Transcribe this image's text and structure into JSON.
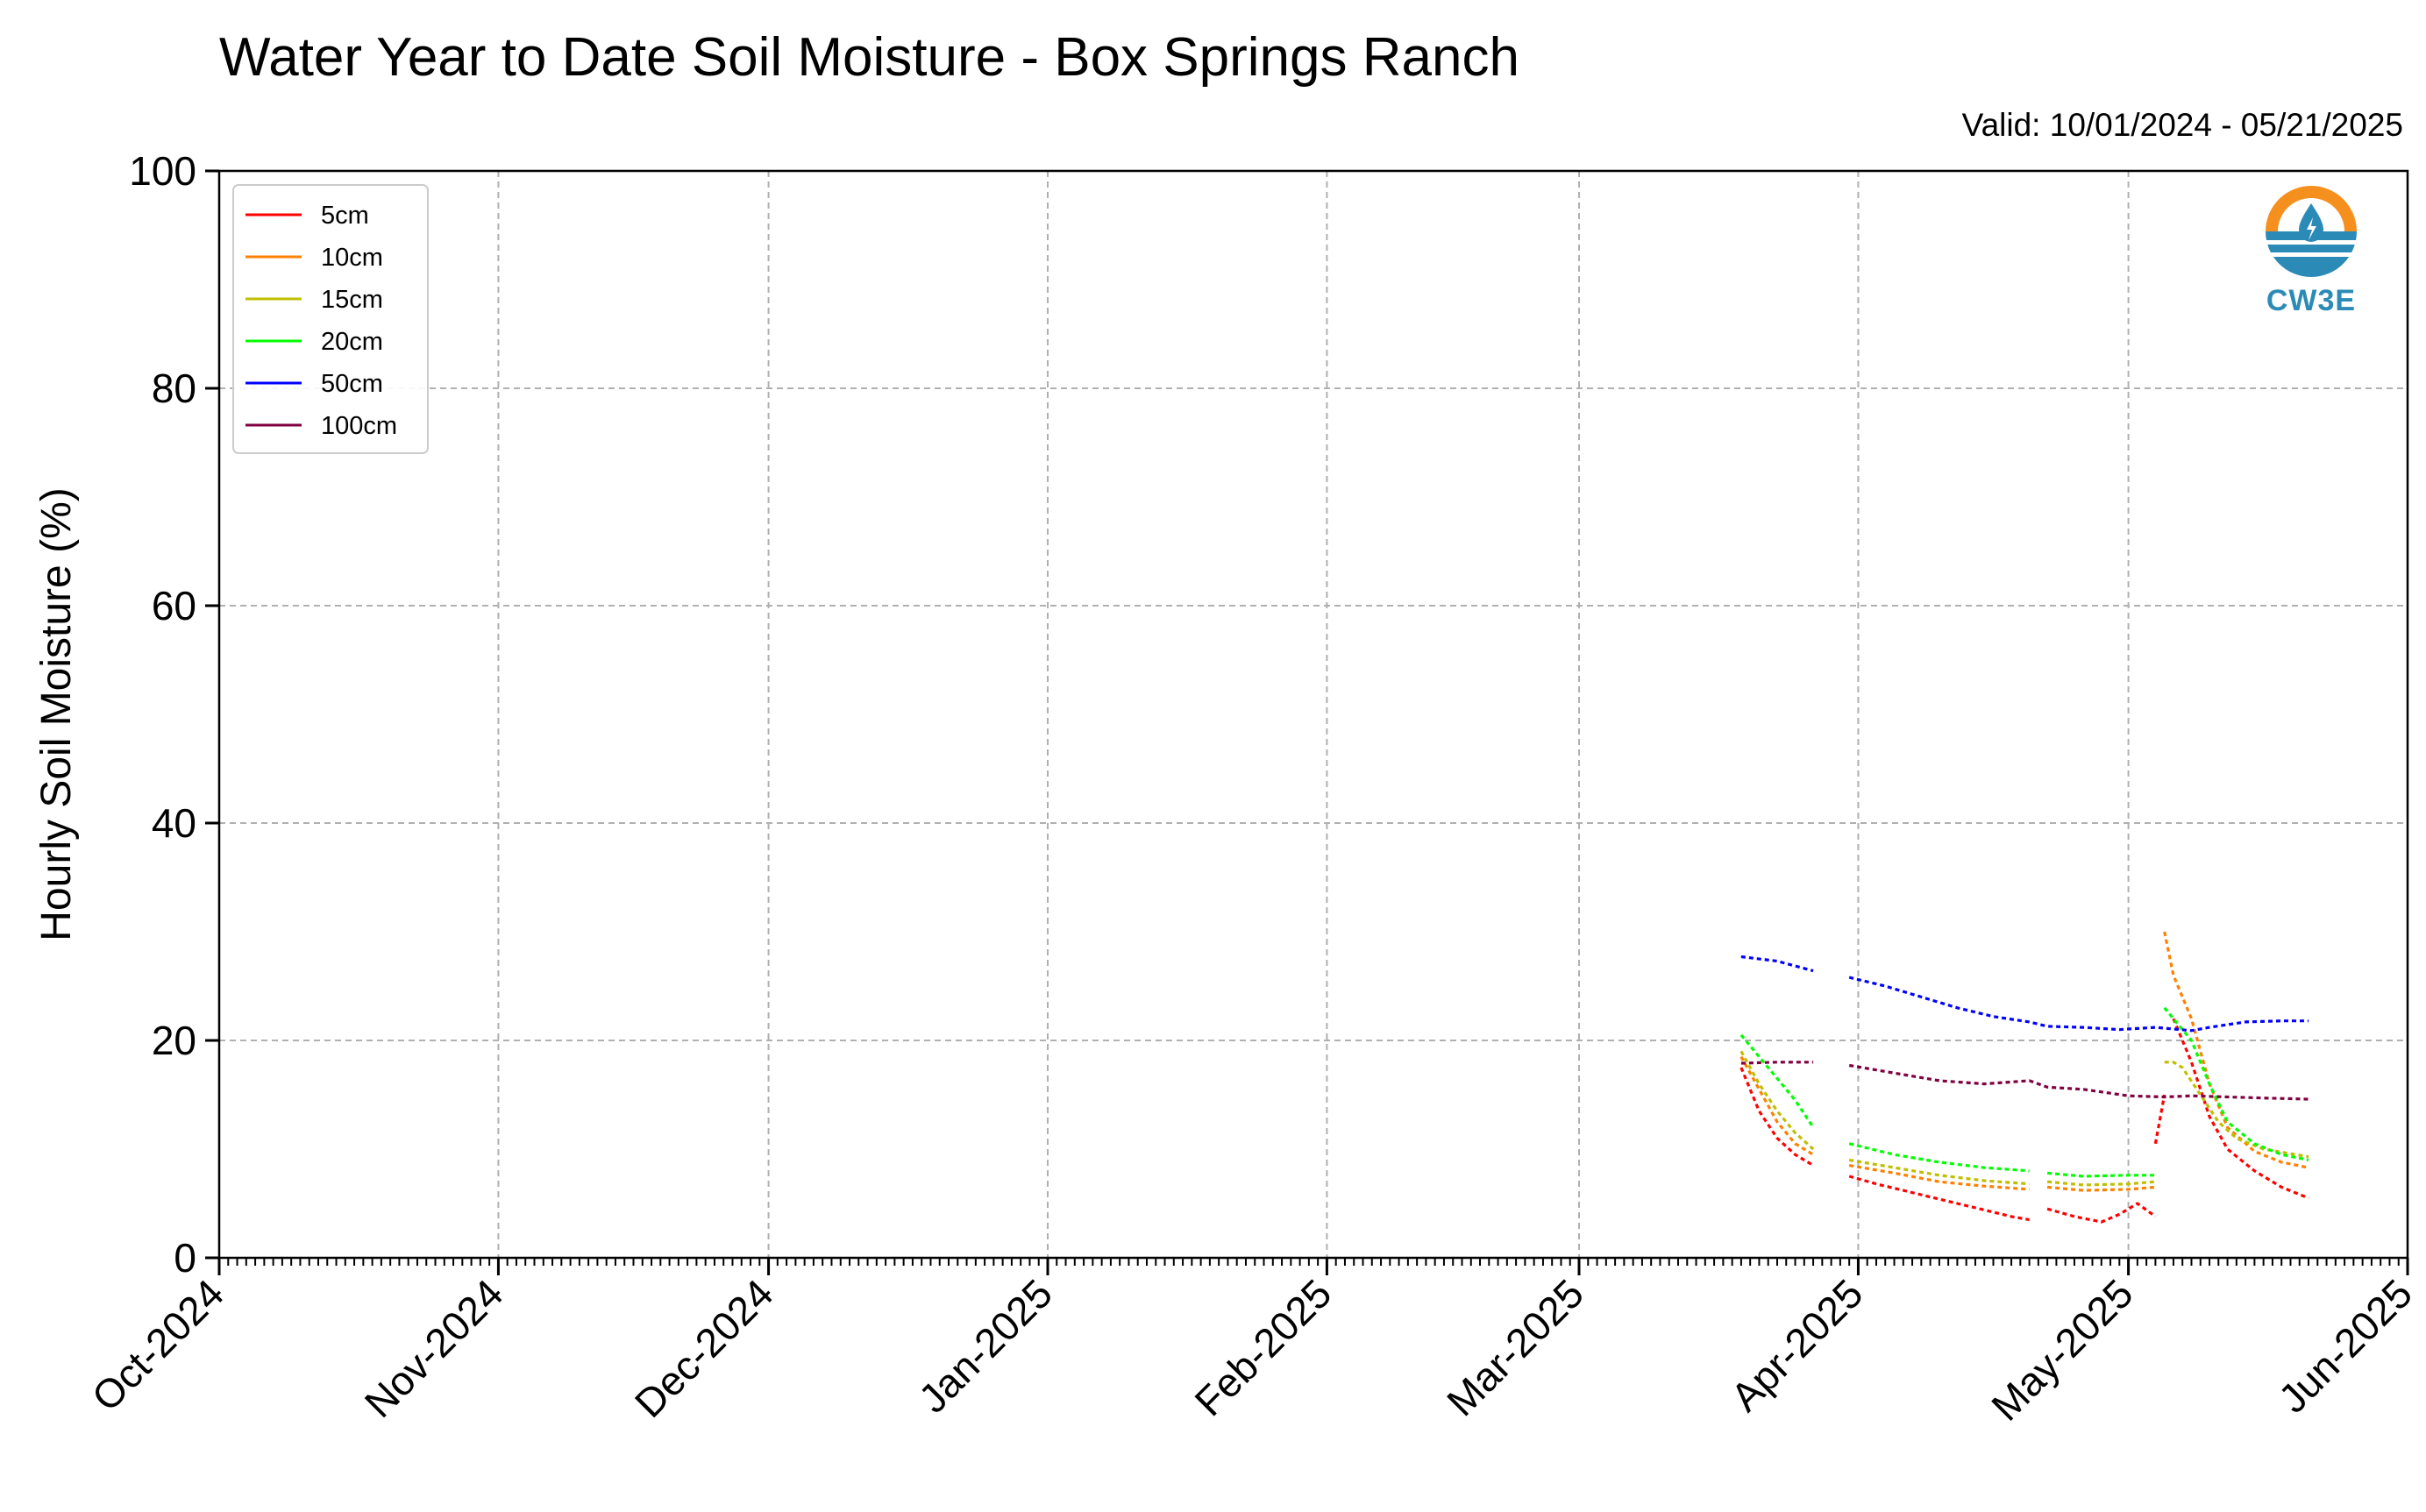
{
  "chart_data": {
    "type": "line",
    "title": "Water Year to Date Soil Moisture - Box Springs Ranch",
    "subtitle": "Valid: 10/01/2024 - 05/21/2025",
    "xlabel": "",
    "ylabel": "Hourly Soil Moisture (%)",
    "ylim": [
      0,
      100
    ],
    "yticks": [
      0,
      20,
      40,
      60,
      80,
      100
    ],
    "xlim": [
      "2024-10-01",
      "2025-06-01"
    ],
    "xticks": [
      {
        "date": "2024-10-01",
        "label": "Oct-2024"
      },
      {
        "date": "2024-11-01",
        "label": "Nov-2024"
      },
      {
        "date": "2024-12-01",
        "label": "Dec-2024"
      },
      {
        "date": "2025-01-01",
        "label": "Jan-2025"
      },
      {
        "date": "2025-02-01",
        "label": "Feb-2025"
      },
      {
        "date": "2025-03-01",
        "label": "Mar-2025"
      },
      {
        "date": "2025-04-01",
        "label": "Apr-2025"
      },
      {
        "date": "2025-05-01",
        "label": "May-2025"
      },
      {
        "date": "2025-06-01",
        "label": "Jun-2025"
      }
    ],
    "grid": true,
    "legend_position": "top-left",
    "series": [
      {
        "name": "5cm",
        "color": "#ff0000",
        "segments": [
          [
            [
              "2025-03-19",
              17.5
            ],
            [
              "2025-03-21",
              13.5
            ],
            [
              "2025-03-23",
              11
            ],
            [
              "2025-03-25",
              9.5
            ],
            [
              "2025-03-27",
              8.5
            ]
          ],
          [
            [
              "2025-03-31",
              7.5
            ],
            [
              "2025-04-03",
              6.8
            ],
            [
              "2025-04-06",
              6.2
            ],
            [
              "2025-04-09",
              5.6
            ],
            [
              "2025-04-12",
              5.0
            ],
            [
              "2025-04-15",
              4.4
            ],
            [
              "2025-04-18",
              3.8
            ],
            [
              "2025-04-20",
              3.5
            ]
          ],
          [
            [
              "2025-04-22",
              4.5
            ],
            [
              "2025-04-25",
              3.8
            ],
            [
              "2025-04-28",
              3.3
            ],
            [
              "2025-04-30",
              4.0
            ],
            [
              "2025-05-02",
              5.0
            ],
            [
              "2025-05-04",
              3.8
            ]
          ],
          [
            [
              "2025-05-04",
              10.5
            ],
            [
              "2025-05-05",
              15
            ]
          ],
          [
            [
              "2025-05-06",
              22
            ],
            [
              "2025-05-08",
              18
            ],
            [
              "2025-05-10",
              13
            ],
            [
              "2025-05-12",
              10
            ],
            [
              "2025-05-15",
              8
            ],
            [
              "2025-05-18",
              6.5
            ],
            [
              "2025-05-21",
              5.5
            ]
          ]
        ]
      },
      {
        "name": "10cm",
        "color": "#ff8000",
        "segments": [
          [
            [
              "2025-03-19",
              18.5
            ],
            [
              "2025-03-21",
              15.5
            ],
            [
              "2025-03-23",
              12.5
            ],
            [
              "2025-03-25",
              10.5
            ],
            [
              "2025-03-27",
              9.5
            ]
          ],
          [
            [
              "2025-03-31",
              8.5
            ],
            [
              "2025-04-05",
              7.8
            ],
            [
              "2025-04-10",
              7.0
            ],
            [
              "2025-04-15",
              6.6
            ],
            [
              "2025-04-20",
              6.3
            ]
          ],
          [
            [
              "2025-04-22",
              6.5
            ],
            [
              "2025-04-26",
              6.2
            ],
            [
              "2025-05-01",
              6.3
            ],
            [
              "2025-05-04",
              6.5
            ]
          ],
          [
            [
              "2025-05-05",
              30
            ],
            [
              "2025-05-06",
              26
            ],
            [
              "2025-05-08",
              22
            ],
            [
              "2025-05-10",
              16
            ],
            [
              "2025-05-12",
              12
            ],
            [
              "2025-05-15",
              9.8
            ],
            [
              "2025-05-18",
              8.8
            ],
            [
              "2025-05-21",
              8.3
            ]
          ]
        ]
      },
      {
        "name": "15cm",
        "color": "#bfbf00",
        "segments": [
          [
            [
              "2025-03-19",
              19
            ],
            [
              "2025-03-21",
              16
            ],
            [
              "2025-03-23",
              13.5
            ],
            [
              "2025-03-25",
              11.5
            ],
            [
              "2025-03-27",
              10
            ]
          ],
          [
            [
              "2025-03-31",
              9
            ],
            [
              "2025-04-05",
              8.3
            ],
            [
              "2025-04-10",
              7.6
            ],
            [
              "2025-04-15",
              7.1
            ],
            [
              "2025-04-20",
              6.8
            ]
          ],
          [
            [
              "2025-04-22",
              7
            ],
            [
              "2025-04-26",
              6.7
            ],
            [
              "2025-05-01",
              6.8
            ],
            [
              "2025-05-04",
              7
            ]
          ],
          [
            [
              "2025-05-05",
              18
            ],
            [
              "2025-05-06",
              18
            ],
            [
              "2025-05-07",
              17.5
            ],
            [
              "2025-05-09",
              15
            ],
            [
              "2025-05-11",
              12.5
            ],
            [
              "2025-05-13",
              11
            ],
            [
              "2025-05-16",
              10
            ],
            [
              "2025-05-21",
              9.3
            ]
          ]
        ]
      },
      {
        "name": "20cm",
        "color": "#00ff00",
        "segments": [
          [
            [
              "2025-03-19",
              20.5
            ],
            [
              "2025-03-21",
              18.5
            ],
            [
              "2025-03-23",
              16.5
            ],
            [
              "2025-03-25",
              14.5
            ],
            [
              "2025-03-27",
              12
            ]
          ],
          [
            [
              "2025-03-31",
              10.5
            ],
            [
              "2025-04-05",
              9.5
            ],
            [
              "2025-04-10",
              8.8
            ],
            [
              "2025-04-15",
              8.3
            ],
            [
              "2025-04-20",
              8
            ]
          ],
          [
            [
              "2025-04-22",
              7.8
            ],
            [
              "2025-04-26",
              7.5
            ],
            [
              "2025-05-01",
              7.6
            ],
            [
              "2025-05-04",
              7.6
            ]
          ],
          [
            [
              "2025-05-05",
              23
            ],
            [
              "2025-05-06",
              22
            ],
            [
              "2025-05-08",
              20
            ],
            [
              "2025-05-10",
              16
            ],
            [
              "2025-05-12",
              12.5
            ],
            [
              "2025-05-15",
              10.5
            ],
            [
              "2025-05-18",
              9.5
            ],
            [
              "2025-05-21",
              9
            ]
          ]
        ]
      },
      {
        "name": "50cm",
        "color": "#0000ff",
        "segments": [
          [
            [
              "2025-03-19",
              27.7
            ],
            [
              "2025-03-23",
              27.3
            ],
            [
              "2025-03-27",
              26.4
            ]
          ],
          [
            [
              "2025-03-31",
              25.8
            ],
            [
              "2025-04-04",
              25
            ],
            [
              "2025-04-08",
              24
            ],
            [
              "2025-04-12",
              23
            ],
            [
              "2025-04-16",
              22.2
            ],
            [
              "2025-04-20",
              21.7
            ],
            [
              "2025-04-22",
              21.3
            ],
            [
              "2025-04-26",
              21.2
            ],
            [
              "2025-04-30",
              21.0
            ],
            [
              "2025-05-04",
              21.2
            ],
            [
              "2025-05-08",
              20.9
            ],
            [
              "2025-05-10",
              21.2
            ],
            [
              "2025-05-14",
              21.7
            ],
            [
              "2025-05-18",
              21.8
            ],
            [
              "2025-05-21",
              21.8
            ]
          ]
        ]
      },
      {
        "name": "100cm",
        "color": "#800040",
        "segments": [
          [
            [
              "2025-03-19",
              17.9
            ],
            [
              "2025-03-23",
              18.0
            ],
            [
              "2025-03-27",
              18.0
            ]
          ],
          [
            [
              "2025-03-31",
              17.7
            ],
            [
              "2025-04-05",
              17.0
            ],
            [
              "2025-04-10",
              16.3
            ],
            [
              "2025-04-15",
              16.0
            ],
            [
              "2025-04-20",
              16.3
            ],
            [
              "2025-04-22",
              15.7
            ],
            [
              "2025-04-26",
              15.5
            ],
            [
              "2025-05-01",
              14.9
            ],
            [
              "2025-05-05",
              14.8
            ],
            [
              "2025-05-08",
              14.9
            ],
            [
              "2025-05-12",
              14.8
            ],
            [
              "2025-05-16",
              14.7
            ],
            [
              "2025-05-21",
              14.6
            ]
          ]
        ]
      }
    ]
  },
  "logo": {
    "text": "CW3E",
    "color_orange": "#f5901e",
    "color_blue": "#2c8bb6"
  }
}
